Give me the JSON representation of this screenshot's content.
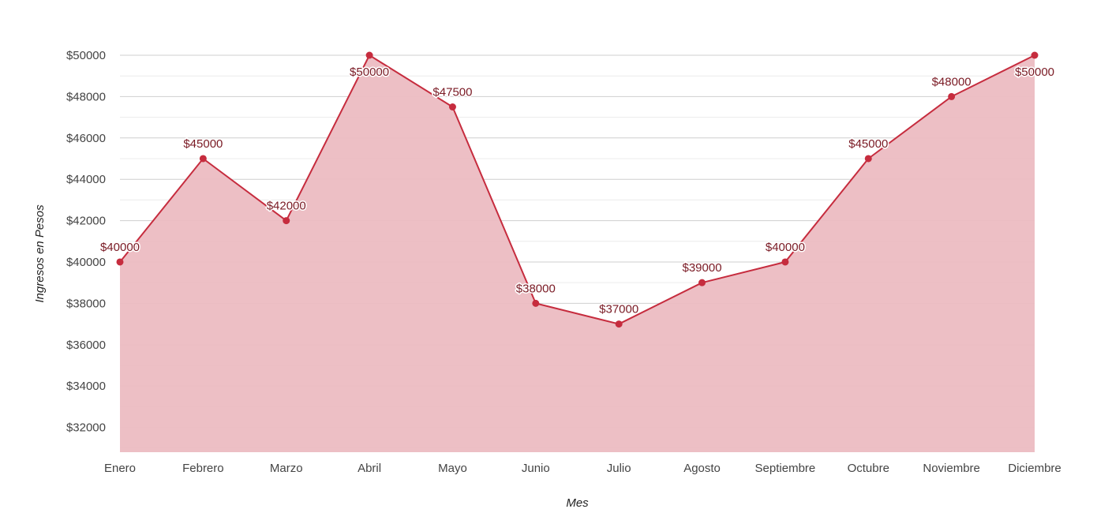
{
  "chart_data": {
    "type": "area",
    "categories": [
      "Enero",
      "Febrero",
      "Marzo",
      "Abril",
      "Mayo",
      "Junio",
      "Julio",
      "Agosto",
      "Septiembre",
      "Octubre",
      "Noviembre",
      "Diciembre"
    ],
    "series": [
      {
        "values": [
          40000,
          45000,
          42000,
          50000,
          47500,
          38000,
          37000,
          39000,
          40000,
          45000,
          48000,
          50000
        ]
      }
    ],
    "data_labels": [
      "$40000",
      "$45000",
      "$42000",
      "$50000",
      "$47500",
      "$38000",
      "$37000",
      "$39000",
      "$40000",
      "$45000",
      "$48000",
      "$50000"
    ],
    "xlabel": "Mes",
    "ylabel": "Ingresos en Pesos",
    "ylim": [
      30800,
      50000
    ],
    "yticks": [
      32000,
      34000,
      36000,
      38000,
      40000,
      42000,
      44000,
      46000,
      48000,
      50000
    ],
    "ytick_labels": [
      "$32000",
      "$34000",
      "$36000",
      "$38000",
      "$40000",
      "$42000",
      "$44000",
      "$46000",
      "$48000",
      "$50000"
    ],
    "grid": true,
    "legend": false,
    "colors": {
      "line": "#c62c3e",
      "fill": "#ecbcc2",
      "grid": "#cfcfcf",
      "minor_grid": "#ececec"
    }
  }
}
